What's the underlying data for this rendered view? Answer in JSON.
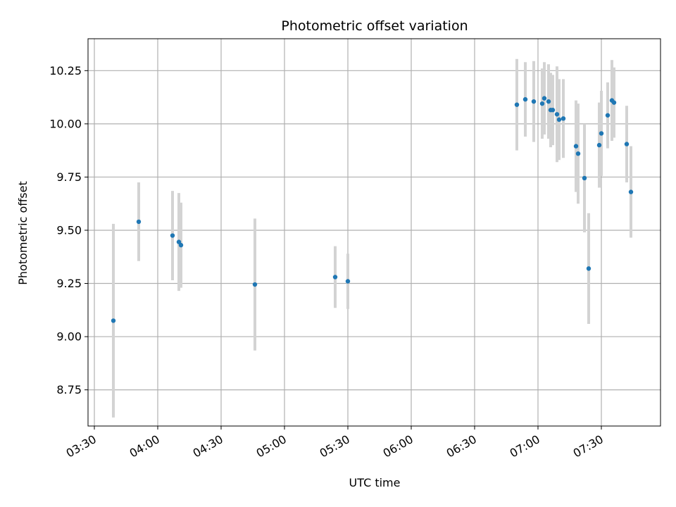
{
  "chart_data": {
    "type": "scatter",
    "title": "Photometric offset variation",
    "xlabel": "UTC time",
    "ylabel": "Photometric offset",
    "x_axis": "time",
    "xlim": [
      "03:27",
      "07:58"
    ],
    "ylim": [
      8.58,
      10.4
    ],
    "x_ticks": [
      "03:30",
      "04:00",
      "04:30",
      "05:00",
      "05:30",
      "06:00",
      "06:30",
      "07:00",
      "07:30"
    ],
    "y_ticks": [
      8.75,
      9.0,
      9.25,
      9.5,
      9.75,
      10.0,
      10.25
    ],
    "y_tick_labels": [
      "8.75",
      "9.00",
      "9.25",
      "9.50",
      "9.75",
      "10.00",
      "10.25"
    ],
    "grid": true,
    "colors": {
      "point": "#1f77b4",
      "errorbar": "#d3d3d3",
      "grid": "#b0b0b0"
    },
    "series": [
      {
        "points": [
          {
            "x": "03:39",
            "y": 9.075,
            "err": 0.455
          },
          {
            "x": "03:51",
            "y": 9.54,
            "err": 0.185
          },
          {
            "x": "04:07",
            "y": 9.475,
            "err": 0.21
          },
          {
            "x": "04:10",
            "y": 9.445,
            "err": 0.23
          },
          {
            "x": "04:11",
            "y": 9.43,
            "err": 0.2
          },
          {
            "x": "04:46",
            "y": 9.245,
            "err": 0.31
          },
          {
            "x": "05:24",
            "y": 9.28,
            "err": 0.145
          },
          {
            "x": "05:30",
            "y": 9.26,
            "err": 0.13
          },
          {
            "x": "06:50",
            "y": 10.09,
            "err": 0.215
          },
          {
            "x": "06:54",
            "y": 10.115,
            "err": 0.175
          },
          {
            "x": "06:58",
            "y": 10.105,
            "err": 0.19
          },
          {
            "x": "07:02",
            "y": 10.095,
            "err": 0.165
          },
          {
            "x": "07:03",
            "y": 10.12,
            "err": 0.17
          },
          {
            "x": "07:05",
            "y": 10.105,
            "err": 0.175
          },
          {
            "x": "07:06",
            "y": 10.065,
            "err": 0.175
          },
          {
            "x": "07:07",
            "y": 10.065,
            "err": 0.165
          },
          {
            "x": "07:09",
            "y": 10.045,
            "err": 0.225
          },
          {
            "x": "07:10",
            "y": 10.02,
            "err": 0.19
          },
          {
            "x": "07:12",
            "y": 10.025,
            "err": 0.185
          },
          {
            "x": "07:18",
            "y": 9.895,
            "err": 0.215
          },
          {
            "x": "07:19",
            "y": 9.86,
            "err": 0.235
          },
          {
            "x": "07:22",
            "y": 9.745,
            "err": 0.255
          },
          {
            "x": "07:24",
            "y": 9.32,
            "err": 0.26
          },
          {
            "x": "07:29",
            "y": 9.9,
            "err": 0.2
          },
          {
            "x": "07:30",
            "y": 9.955,
            "err": 0.2
          },
          {
            "x": "07:33",
            "y": 10.04,
            "err": 0.155
          },
          {
            "x": "07:35",
            "y": 10.11,
            "err": 0.19
          },
          {
            "x": "07:36",
            "y": 10.1,
            "err": 0.165
          },
          {
            "x": "07:42",
            "y": 9.905,
            "err": 0.18
          },
          {
            "x": "07:44",
            "y": 9.68,
            "err": 0.215
          }
        ]
      }
    ]
  }
}
